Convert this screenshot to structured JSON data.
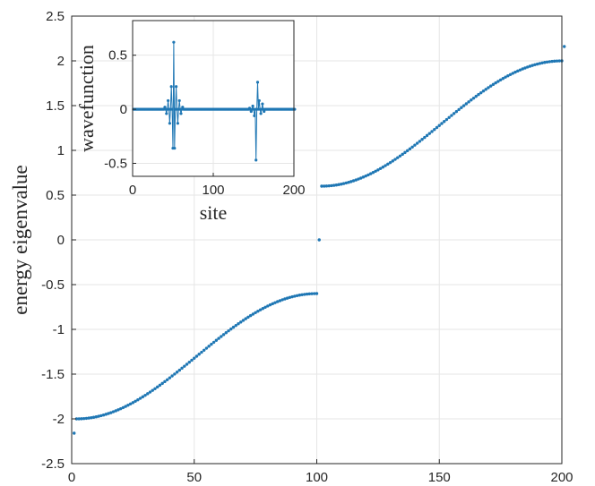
{
  "chart_data": [
    {
      "type": "scatter",
      "title": "",
      "xlabel": "",
      "ylabel": "energy eigenvalue",
      "xlim": [
        0,
        200
      ],
      "ylim": [
        -2.5,
        2.5
      ],
      "xticks": [
        0,
        50,
        100,
        150,
        200
      ],
      "yticks": [
        -2.5,
        -2,
        -1.5,
        -1,
        -0.5,
        0,
        0.5,
        1,
        1.5,
        2,
        2.5
      ],
      "xtick_labels": [
        "0",
        "50",
        "100",
        "150",
        "200"
      ],
      "ytick_labels": [
        "-2.5",
        "-2",
        "-1.5",
        "-1",
        "-0.5",
        "0",
        "0.5",
        "1",
        "1.5",
        "2",
        "2.5"
      ],
      "grid": true,
      "marker_color": "#1f77b4",
      "series": [
        {
          "description": "eigenvalues sorted ascending, 201 states",
          "x_start": 1,
          "x_end": 201,
          "lower_band": {
            "x_from": 2,
            "x_to": 100,
            "y_from": -2.0,
            "y_to": -0.6
          },
          "upper_band": {
            "x_from": 102,
            "x_to": 200,
            "y_from": 0.6,
            "y_to": 2.0
          },
          "isolated_points": [
            {
              "x": 1,
              "y": -2.16
            },
            {
              "x": 101,
              "y": 0.0
            },
            {
              "x": 201,
              "y": 2.16
            }
          ]
        }
      ]
    },
    {
      "type": "line",
      "title": "",
      "xlabel": "site",
      "ylabel": "wavefunction",
      "xlim": [
        0,
        200
      ],
      "ylim": [
        -0.62,
        0.82
      ],
      "xticks": [
        0,
        100,
        200
      ],
      "yticks": [
        -0.5,
        0,
        0.5
      ],
      "xtick_labels": [
        "0",
        "100",
        "200"
      ],
      "ytick_labels": [
        "-0.5",
        "0",
        "0.5"
      ],
      "grid": true,
      "line_color": "#1f77b4",
      "sites": 201,
      "nonzero_amplitudes": [
        {
          "x": 40,
          "y": 0.02
        },
        {
          "x": 42,
          "y": -0.04
        },
        {
          "x": 44,
          "y": 0.08
        },
        {
          "x": 46,
          "y": -0.13
        },
        {
          "x": 48,
          "y": 0.21
        },
        {
          "x": 50,
          "y": -0.36
        },
        {
          "x": 51,
          "y": 0.62
        },
        {
          "x": 52,
          "y": -0.36
        },
        {
          "x": 54,
          "y": 0.21
        },
        {
          "x": 56,
          "y": -0.13
        },
        {
          "x": 58,
          "y": 0.08
        },
        {
          "x": 60,
          "y": -0.04
        },
        {
          "x": 62,
          "y": 0.02
        },
        {
          "x": 145,
          "y": 0.01
        },
        {
          "x": 147,
          "y": -0.02
        },
        {
          "x": 149,
          "y": 0.03
        },
        {
          "x": 151,
          "y": -0.06
        },
        {
          "x": 153,
          "y": -0.47
        },
        {
          "x": 155,
          "y": 0.25
        },
        {
          "x": 157,
          "y": 0.08
        },
        {
          "x": 159,
          "y": -0.04
        },
        {
          "x": 161,
          "y": 0.05
        },
        {
          "x": 163,
          "y": -0.02
        }
      ]
    }
  ]
}
